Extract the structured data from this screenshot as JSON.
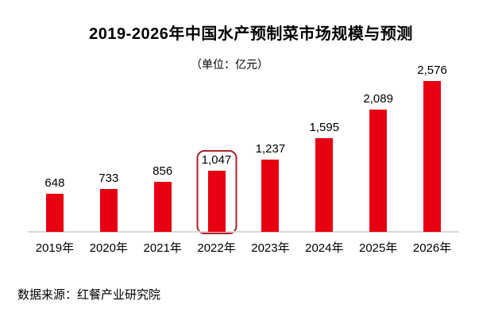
{
  "chart_data": {
    "type": "bar",
    "title": "2019-2026年中国水产预制菜市场规模与预测",
    "subtitle": "（单位：亿元）",
    "source": "数据来源：红餐产业研究院",
    "categories": [
      "2019年",
      "2020年",
      "2021年",
      "2022年",
      "2023年",
      "2024年",
      "2025年",
      "2026年"
    ],
    "values": [
      648,
      733,
      856,
      1047,
      1237,
      1595,
      2089,
      2576
    ],
    "value_labels": [
      "648",
      "733",
      "856",
      "1,047",
      "1,237",
      "1,595",
      "2,089",
      "2,576"
    ],
    "highlight_index": 3,
    "ylim": [
      0,
      2800
    ],
    "xlabel": "",
    "ylabel": "亿元",
    "legend": "none",
    "grid": "off",
    "colors": {
      "bar": "#E60012",
      "highlight_border": "#B02025",
      "axis_line": "#D8D8D8",
      "text": "#000000",
      "background": "#FFFFFF"
    }
  }
}
